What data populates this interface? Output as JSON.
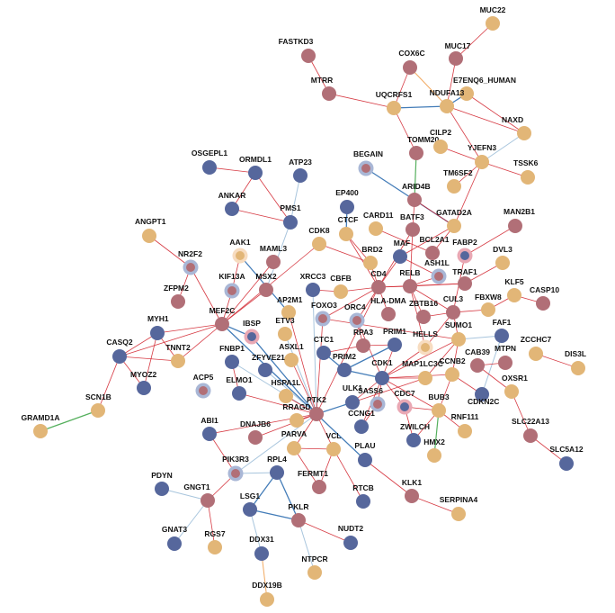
{
  "colors": {
    "blue": "#56679c",
    "mauve": "#b16f77",
    "tan": "#e2b677",
    "edge_red": "#d1252f",
    "edge_blue": "#2f6eb0",
    "edge_lightblue": "#9fbfd9",
    "edge_green": "#41a64a",
    "edge_orange": "#f0a050"
  },
  "nodes": [
    {
      "id": "MUC22",
      "label": "MUC22",
      "color": "tan"
    },
    {
      "id": "MUC17",
      "label": "MUC17",
      "color": "mauve"
    },
    {
      "id": "FASTKD3",
      "label": "FASTKD3",
      "color": "mauve"
    },
    {
      "id": "COX6C",
      "label": "COX6C",
      "color": "mauve"
    },
    {
      "id": "E7ENQ6",
      "label": "E7ENQ6_HUMAN",
      "color": "tan"
    },
    {
      "id": "MTRR",
      "label": "MTRR",
      "color": "mauve"
    },
    {
      "id": "UQCRFS1",
      "label": "UQCRFS1",
      "color": "tan"
    },
    {
      "id": "NDUFA13",
      "label": "NDUFA13",
      "color": "tan"
    },
    {
      "id": "NAXD",
      "label": "NAXD",
      "color": "tan"
    },
    {
      "id": "TOMM20",
      "label": "TOMM20",
      "color": "mauve"
    },
    {
      "id": "CILP2",
      "label": "CILP2",
      "color": "tan"
    },
    {
      "id": "YJEFN3",
      "label": "YJEFN3",
      "color": "tan"
    },
    {
      "id": "TSSK6",
      "label": "TSSK6",
      "color": "tan"
    },
    {
      "id": "OSGEPL1",
      "label": "OSGEPL1",
      "color": "blue"
    },
    {
      "id": "ORMDL1",
      "label": "ORMDL1",
      "color": "blue"
    },
    {
      "id": "ATP23",
      "label": "ATP23",
      "color": "blue"
    },
    {
      "id": "BEGAIN",
      "label": "BEGAIN",
      "color": "mauve",
      "ring": true
    },
    {
      "id": "TM6SF2",
      "label": "TM6SF2",
      "color": "tan"
    },
    {
      "id": "ARID4B",
      "label": "ARID4B",
      "color": "mauve"
    },
    {
      "id": "ANKAR",
      "label": "ANKAR",
      "color": "blue"
    },
    {
      "id": "EP400",
      "label": "EP400",
      "color": "blue"
    },
    {
      "id": "PMS1",
      "label": "PMS1",
      "color": "blue"
    },
    {
      "id": "CARD11",
      "label": "CARD11",
      "color": "tan"
    },
    {
      "id": "BATF3",
      "label": "BATF3",
      "color": "mauve"
    },
    {
      "id": "GATAD2A",
      "label": "GATAD2A",
      "color": "tan"
    },
    {
      "id": "MAN2B1",
      "label": "MAN2B1",
      "color": "mauve"
    },
    {
      "id": "ANGPT1",
      "label": "ANGPT1",
      "color": "tan"
    },
    {
      "id": "CTCF",
      "label": "CTCF",
      "color": "tan"
    },
    {
      "id": "CDK8",
      "label": "CDK8",
      "color": "tan"
    },
    {
      "id": "BCL2A1",
      "label": "BCL2A1",
      "color": "mauve"
    },
    {
      "id": "NR2F2",
      "label": "NR2F2",
      "color": "mauve",
      "ring": true
    },
    {
      "id": "AAK1",
      "label": "AAK1",
      "color": "tan",
      "ring": true
    },
    {
      "id": "MAML3",
      "label": "MAML3",
      "color": "mauve"
    },
    {
      "id": "BRD2",
      "label": "BRD2",
      "color": "tan"
    },
    {
      "id": "MAF",
      "label": "MAF",
      "color": "blue"
    },
    {
      "id": "FABP2",
      "label": "FABP2",
      "color": "blue",
      "ring": true
    },
    {
      "id": "DVL3",
      "label": "DVL3",
      "color": "tan"
    },
    {
      "id": "ASH1L",
      "label": "ASH1L",
      "color": "mauve",
      "ring": true
    },
    {
      "id": "TRAF1",
      "label": "TRAF1",
      "color": "mauve"
    },
    {
      "id": "ZFPM2",
      "label": "ZFPM2",
      "color": "mauve"
    },
    {
      "id": "KIF13A",
      "label": "KIF13A",
      "color": "mauve",
      "ring": true
    },
    {
      "id": "MSX2",
      "label": "MSX2",
      "color": "mauve"
    },
    {
      "id": "XRCC3",
      "label": "XRCC3",
      "color": "blue"
    },
    {
      "id": "CBFB",
      "label": "CBFB",
      "color": "tan"
    },
    {
      "id": "CD4",
      "label": "CD4",
      "color": "mauve"
    },
    {
      "id": "RELB",
      "label": "RELB",
      "color": "mauve"
    },
    {
      "id": "KLF5",
      "label": "KLF5",
      "color": "tan"
    },
    {
      "id": "FBXW8",
      "label": "FBXW8",
      "color": "tan"
    },
    {
      "id": "CASP10",
      "label": "CASP10",
      "color": "mauve"
    },
    {
      "id": "MEF2C",
      "label": "MEF2C",
      "color": "mauve"
    },
    {
      "id": "AP2M1",
      "label": "AP2M1",
      "color": "tan"
    },
    {
      "id": "FOXO3",
      "label": "FOXO3",
      "color": "mauve",
      "ring": true
    },
    {
      "id": "ORC4",
      "label": "ORC4",
      "color": "mauve",
      "ring": true
    },
    {
      "id": "HLADMA",
      "label": "HLA-DMA",
      "color": "mauve"
    },
    {
      "id": "ZBTB16",
      "label": "ZBTB16",
      "color": "mauve"
    },
    {
      "id": "CUL3",
      "label": "CUL3",
      "color": "mauve"
    },
    {
      "id": "MYH1",
      "label": "MYH1",
      "color": "blue"
    },
    {
      "id": "IBSP",
      "label": "IBSP",
      "color": "blue",
      "ring": true
    },
    {
      "id": "ETV3",
      "label": "ETV3",
      "color": "tan"
    },
    {
      "id": "HELLS",
      "label": "HELLS",
      "color": "tan",
      "ring": true
    },
    {
      "id": "SUMO1",
      "label": "SUMO1",
      "color": "tan"
    },
    {
      "id": "FAF1",
      "label": "FAF1",
      "color": "blue"
    },
    {
      "id": "ZCCHC7",
      "label": "ZCCHC7",
      "color": "tan"
    },
    {
      "id": "TNNT2",
      "label": "TNNT2",
      "color": "tan"
    },
    {
      "id": "CASQ2",
      "label": "CASQ2",
      "color": "blue"
    },
    {
      "id": "FNBP1",
      "label": "FNBP1",
      "color": "blue"
    },
    {
      "id": "ASXL1",
      "label": "ASXL1",
      "color": "tan"
    },
    {
      "id": "CTC1",
      "label": "CTC1",
      "color": "blue"
    },
    {
      "id": "RPA3",
      "label": "RPA3",
      "color": "mauve"
    },
    {
      "id": "PRIM1",
      "label": "PRIM1",
      "color": "blue"
    },
    {
      "id": "CAB39",
      "label": "CAB39",
      "color": "mauve"
    },
    {
      "id": "MTPN",
      "label": "MTPN",
      "color": "mauve"
    },
    {
      "id": "DIS3L",
      "label": "DIS3L",
      "color": "tan"
    },
    {
      "id": "ZFYVE21",
      "label": "ZFYVE21",
      "color": "blue"
    },
    {
      "id": "PRIM2",
      "label": "PRIM2",
      "color": "blue"
    },
    {
      "id": "CDK1",
      "label": "CDK1",
      "color": "blue"
    },
    {
      "id": "MAP1LC3C",
      "label": "MAP1LC3C",
      "color": "tan"
    },
    {
      "id": "CCNB2",
      "label": "CCNB2",
      "color": "tan"
    },
    {
      "id": "MYOZ2",
      "label": "MYOZ2",
      "color": "blue"
    },
    {
      "id": "ACP5",
      "label": "ACP5",
      "color": "mauve",
      "ring": true
    },
    {
      "id": "ELMO1",
      "label": "ELMO1",
      "color": "blue"
    },
    {
      "id": "HSPA1L",
      "label": "HSPA1L",
      "color": "tan"
    },
    {
      "id": "PTK2",
      "label": "PTK2",
      "color": "mauve"
    },
    {
      "id": "SCN1B",
      "label": "SCN1B",
      "color": "tan"
    },
    {
      "id": "ULK1",
      "label": "ULK1",
      "color": "blue"
    },
    {
      "id": "SASS6",
      "label": "SASS6",
      "color": "mauve",
      "ring": true
    },
    {
      "id": "CDC7",
      "label": "CDC7",
      "color": "blue",
      "ring": true
    },
    {
      "id": "CDKN2C",
      "label": "CDKN2C",
      "color": "blue"
    },
    {
      "id": "OXSR1",
      "label": "OXSR1",
      "color": "tan"
    },
    {
      "id": "BUB3",
      "label": "BUB3",
      "color": "tan"
    },
    {
      "id": "ABI1",
      "label": "ABI1",
      "color": "blue"
    },
    {
      "id": "DNAJB6",
      "label": "DNAJB6",
      "color": "mauve"
    },
    {
      "id": "RRAGD",
      "label": "RRAGD",
      "color": "tan"
    },
    {
      "id": "CCNG1",
      "label": "CCNG1",
      "color": "blue"
    },
    {
      "id": "ZWILCH",
      "label": "ZWILCH",
      "color": "blue"
    },
    {
      "id": "RNF111",
      "label": "RNF111",
      "color": "tan"
    },
    {
      "id": "SLC22A13",
      "label": "SLC22A13",
      "color": "mauve"
    },
    {
      "id": "GRAMD1A",
      "label": "GRAMD1A",
      "color": "tan"
    },
    {
      "id": "PARVA",
      "label": "PARVA",
      "color": "tan"
    },
    {
      "id": "VCL",
      "label": "VCL",
      "color": "tan"
    },
    {
      "id": "HMX2",
      "label": "HMX2",
      "color": "tan"
    },
    {
      "id": "SLC5A12",
      "label": "SLC5A12",
      "color": "blue"
    },
    {
      "id": "PIK3R3",
      "label": "PIK3R3",
      "color": "mauve",
      "ring": true
    },
    {
      "id": "RPL4",
      "label": "RPL4",
      "color": "blue"
    },
    {
      "id": "PLAU",
      "label": "PLAU",
      "color": "blue"
    },
    {
      "id": "FERMT1",
      "label": "FERMT1",
      "color": "mauve"
    },
    {
      "id": "PDYN",
      "label": "PDYN",
      "color": "blue"
    },
    {
      "id": "GNGT1",
      "label": "GNGT1",
      "color": "mauve"
    },
    {
      "id": "RTCB",
      "label": "RTCB",
      "color": "blue"
    },
    {
      "id": "KLK1",
      "label": "KLK1",
      "color": "mauve"
    },
    {
      "id": "LSG1",
      "label": "LSG1",
      "color": "blue"
    },
    {
      "id": "SERPINA4",
      "label": "SERPINA4",
      "color": "tan"
    },
    {
      "id": "PKLR",
      "label": "PKLR",
      "color": "mauve"
    },
    {
      "id": "GNAT3",
      "label": "GNAT3",
      "color": "blue"
    },
    {
      "id": "RGS7",
      "label": "RGS7",
      "color": "tan"
    },
    {
      "id": "DDX31",
      "label": "DDX31",
      "color": "blue"
    },
    {
      "id": "NUDT2",
      "label": "NUDT2",
      "color": "blue"
    },
    {
      "id": "NTPCR",
      "label": "NTPCR",
      "color": "tan"
    },
    {
      "id": "DDX19B",
      "label": "DDX19B",
      "color": "tan"
    }
  ],
  "edges": [
    [
      "MUC17",
      "MUC22",
      "red"
    ],
    [
      "MUC17",
      "NDUFA13",
      "red"
    ],
    [
      "FASTKD3",
      "MTRR",
      "red"
    ],
    [
      "MTRR",
      "UQCRFS1",
      "red"
    ],
    [
      "COX6C",
      "UQCRFS1",
      "red"
    ],
    [
      "COX6C",
      "NDUFA13",
      "orange"
    ],
    [
      "UQCRFS1",
      "NDUFA13",
      "blue"
    ],
    [
      "UQCRFS1",
      "TOMM20",
      "red"
    ],
    [
      "NDUFA13",
      "E7ENQ6",
      "blue"
    ],
    [
      "NDUFA13",
      "NAXD",
      "red"
    ],
    [
      "NDUFA13",
      "YJEFN3",
      "red"
    ],
    [
      "NAXD",
      "YJEFN3",
      "lightblue"
    ],
    [
      "E7ENQ6",
      "NAXD",
      "red"
    ],
    [
      "CILP2",
      "YJEFN3",
      "red"
    ],
    [
      "YJEFN3",
      "TSSK6",
      "red"
    ],
    [
      "YJEFN3",
      "TM6SF2",
      "red"
    ],
    [
      "YJEFN3",
      "GATAD2A",
      "red"
    ],
    [
      "TOMM20",
      "ARID4B",
      "green"
    ],
    [
      "BEGAIN",
      "GATAD2A",
      "blue"
    ],
    [
      "ARID4B",
      "GATAD2A",
      "red"
    ],
    [
      "ARID4B",
      "BATF3",
      "red"
    ],
    [
      "OSGEPL1",
      "ORMDL1",
      "red"
    ],
    [
      "ORMDL1",
      "ANKAR",
      "red"
    ],
    [
      "ORMDL1",
      "PMS1",
      "red"
    ],
    [
      "ANKAR",
      "PMS1",
      "red"
    ],
    [
      "ATP23",
      "PMS1",
      "lightblue"
    ],
    [
      "PMS1",
      "MSX2",
      "lightblue"
    ],
    [
      "EP400",
      "CTCF",
      "blue"
    ],
    [
      "CARD11",
      "BCL2A1",
      "red"
    ],
    [
      "BATF3",
      "CD4",
      "red"
    ],
    [
      "BATF3",
      "RELB",
      "red"
    ],
    [
      "GATAD2A",
      "BCL2A1",
      "red"
    ],
    [
      "GATAD2A",
      "MAF",
      "red"
    ],
    [
      "MAN2B1",
      "FABP2",
      "red"
    ],
    [
      "ANGPT1",
      "NR2F2",
      "red"
    ],
    [
      "NR2F2",
      "ZFPM2",
      "red"
    ],
    [
      "NR2F2",
      "MEF2C",
      "red"
    ],
    [
      "AAK1",
      "AP2M1",
      "blue"
    ],
    [
      "AAK1",
      "KIF13A",
      "red"
    ],
    [
      "MAML3",
      "MEF2C",
      "red"
    ],
    [
      "CDK8",
      "MEF2C",
      "red"
    ],
    [
      "CDK8",
      "BRD2",
      "red"
    ],
    [
      "CTCF",
      "BRD2",
      "red"
    ],
    [
      "CTCF",
      "CD4",
      "red"
    ],
    [
      "BRD2",
      "CD4",
      "red"
    ],
    [
      "MAF",
      "CD4",
      "red"
    ],
    [
      "MAF",
      "ASH1L",
      "red"
    ],
    [
      "FABP2",
      "CUL3",
      "red"
    ],
    [
      "DVL3",
      "TRAF1",
      "red"
    ],
    [
      "TRAF1",
      "RELB",
      "red"
    ],
    [
      "TRAF1",
      "CD4",
      "red"
    ],
    [
      "ASH1L",
      "RELB",
      "red"
    ],
    [
      "KIF13A",
      "MEF2C",
      "red"
    ],
    [
      "MSX2",
      "MEF2C",
      "red"
    ],
    [
      "XRCC3",
      "PTK2",
      "lightblue"
    ],
    [
      "XRCC3",
      "CBFB",
      "red"
    ],
    [
      "CBFB",
      "CD4",
      "red"
    ],
    [
      "CD4",
      "RELB",
      "red"
    ],
    [
      "CD4",
      "HLADMA",
      "red"
    ],
    [
      "CD4",
      "ORC4",
      "red"
    ],
    [
      "CD4",
      "FOXO3",
      "red"
    ],
    [
      "CD4",
      "PTK2",
      "red"
    ],
    [
      "RELB",
      "ZBTB16",
      "red"
    ],
    [
      "RELB",
      "CUL3",
      "red"
    ],
    [
      "KLF5",
      "CASP10",
      "red"
    ],
    [
      "KLF5",
      "FBXW8",
      "red"
    ],
    [
      "FBXW8",
      "CUL3",
      "red"
    ],
    [
      "CUL3",
      "SUMO1",
      "red"
    ],
    [
      "CUL3",
      "ZBTB16",
      "red"
    ],
    [
      "CUL3",
      "HELLS",
      "red"
    ],
    [
      "MEF2C",
      "MYH1",
      "red"
    ],
    [
      "MEF2C",
      "TNNT2",
      "red"
    ],
    [
      "MEF2C",
      "CASQ2",
      "red"
    ],
    [
      "MEF2C",
      "PTK2",
      "blue"
    ],
    [
      "MEF2C",
      "IBSP",
      "blue"
    ],
    [
      "AP2M1",
      "PTK2",
      "red"
    ],
    [
      "FOXO3",
      "PTK2",
      "red"
    ],
    [
      "ORC4",
      "RPA3",
      "red"
    ],
    [
      "ORC4",
      "CDK1",
      "red"
    ],
    [
      "HELLS",
      "CDK1",
      "red"
    ],
    [
      "SUMO1",
      "FAF1",
      "lightblue"
    ],
    [
      "SUMO1",
      "CDK1",
      "red"
    ],
    [
      "SUMO1",
      "MAP1LC3C",
      "red"
    ],
    [
      "SUMO1",
      "CCNB2",
      "red"
    ],
    [
      "FAF1",
      "CDKN2C",
      "lightblue"
    ],
    [
      "ZCCHC7",
      "DIS3L",
      "red"
    ],
    [
      "MYH1",
      "CASQ2",
      "red"
    ],
    [
      "MYH1",
      "TNNT2",
      "red"
    ],
    [
      "MYH1",
      "MYOZ2",
      "red"
    ],
    [
      "CASQ2",
      "MYOZ2",
      "red"
    ],
    [
      "CASQ2",
      "SCN1B",
      "red"
    ],
    [
      "SCN1B",
      "GRAMD1A",
      "green"
    ],
    [
      "TNNT2",
      "CASQ2",
      "red"
    ],
    [
      "FNBP1",
      "PTK2",
      "lightblue"
    ],
    [
      "FNBP1",
      "ELMO1",
      "red"
    ],
    [
      "ASXL1",
      "PTK2",
      "red"
    ],
    [
      "CTC1",
      "PRIM2",
      "blue"
    ],
    [
      "CTC1",
      "RPA3",
      "red"
    ],
    [
      "RPA3",
      "PRIM1",
      "red"
    ],
    [
      "PRIM1",
      "PRIM2",
      "blue"
    ],
    [
      "PRIM1",
      "CDK1",
      "red"
    ],
    [
      "CAB39",
      "OXSR1",
      "red"
    ],
    [
      "CAB39",
      "MTPN",
      "red"
    ],
    [
      "ZFYVE21",
      "PTK2",
      "lightblue"
    ],
    [
      "PRIM2",
      "CDK1",
      "blue"
    ],
    [
      "CDK1",
      "CCNB2",
      "red"
    ],
    [
      "CDK1",
      "SASS6",
      "red"
    ],
    [
      "CDK1",
      "CDC7",
      "red"
    ],
    [
      "CDK1",
      "ULK1",
      "red"
    ],
    [
      "CDK1",
      "CCNG1",
      "red"
    ],
    [
      "CDK1",
      "BUB3",
      "red"
    ],
    [
      "MAP1LC3C",
      "ULK1",
      "red"
    ],
    [
      "CCNB2",
      "CDKN2C",
      "red"
    ],
    [
      "CCNB2",
      "BUB3",
      "red"
    ],
    [
      "ELMO1",
      "PTK2",
      "red"
    ],
    [
      "HSPA1L",
      "PTK2",
      "red"
    ],
    [
      "PTK2",
      "VCL",
      "red"
    ],
    [
      "PTK2",
      "PARVA",
      "red"
    ],
    [
      "PTK2",
      "RRAGD",
      "red"
    ],
    [
      "PTK2",
      "DNAJB6",
      "red"
    ],
    [
      "PTK2",
      "ABI1",
      "red"
    ],
    [
      "PTK2",
      "PIK3R3",
      "lightblue"
    ],
    [
      "PTK2",
      "PLAU",
      "blue"
    ],
    [
      "PTK2",
      "ULK1",
      "blue"
    ],
    [
      "CDC7",
      "BUB3",
      "red"
    ],
    [
      "CDC7",
      "ZWILCH",
      "red"
    ],
    [
      "BUB3",
      "ZWILCH",
      "red"
    ],
    [
      "BUB3",
      "RNF111",
      "red"
    ],
    [
      "BUB3",
      "HMX2",
      "green"
    ],
    [
      "OXSR1",
      "SLC22A13",
      "red"
    ],
    [
      "SLC22A13",
      "SLC5A12",
      "red"
    ],
    [
      "ABI1",
      "PIK3R3",
      "red"
    ],
    [
      "PARVA",
      "VCL",
      "red"
    ],
    [
      "VCL",
      "FERMT1",
      "red"
    ],
    [
      "VCL",
      "RTCB",
      "red"
    ],
    [
      "PARVA",
      "FERMT1",
      "red"
    ],
    [
      "PIK3R3",
      "RPL4",
      "lightblue"
    ],
    [
      "RPL4",
      "LSG1",
      "blue"
    ],
    [
      "RPL4",
      "PKLR",
      "blue"
    ],
    [
      "PLAU",
      "KLK1",
      "red"
    ],
    [
      "KLK1",
      "SERPINA4",
      "red"
    ],
    [
      "PDYN",
      "GNGT1",
      "lightblue"
    ],
    [
      "GNGT1",
      "GNAT3",
      "lightblue"
    ],
    [
      "GNGT1",
      "RGS7",
      "red"
    ],
    [
      "GNGT1",
      "PIK3R3",
      "red"
    ],
    [
      "LSG1",
      "DDX31",
      "lightblue"
    ],
    [
      "LSG1",
      "PKLR",
      "blue"
    ],
    [
      "PKLR",
      "NUDT2",
      "red"
    ],
    [
      "PKLR",
      "NTPCR",
      "lightblue"
    ],
    [
      "DDX31",
      "DDX19B",
      "orange"
    ],
    [
      "FOXO3",
      "SUMO1",
      "red"
    ],
    [
      "RELB",
      "HELLS",
      "red"
    ],
    [
      "CDK1",
      "MAP1LC3C",
      "red"
    ],
    [
      "CCNG1",
      "SASS6",
      "red"
    ],
    [
      "ETV3",
      "PTK2",
      "lightblue"
    ],
    [
      "IBSP",
      "PTK2",
      "blue"
    ]
  ]
}
